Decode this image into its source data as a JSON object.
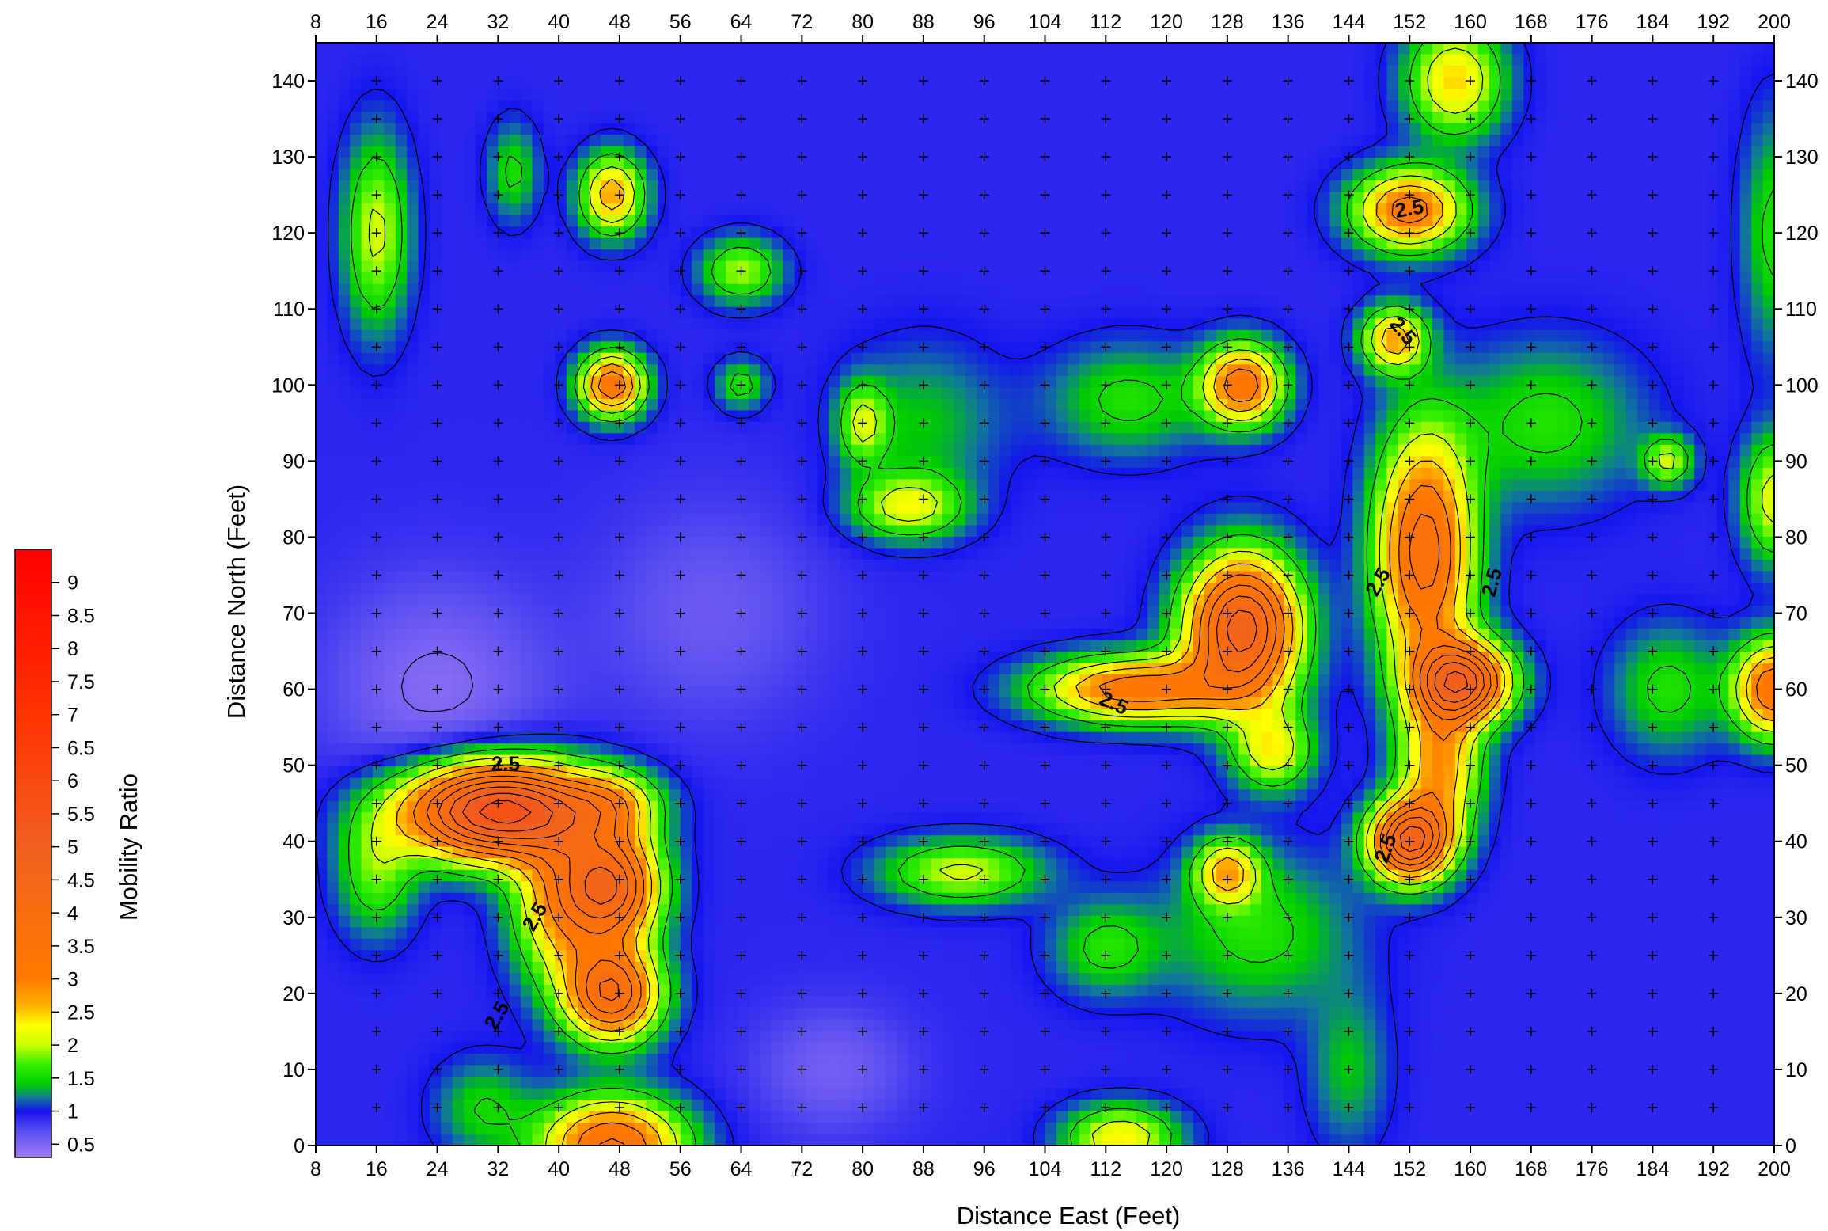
{
  "chart_data": {
    "type": "heatmap",
    "subtype": "filled-contour-map",
    "xlabel": "Distance East (Feet)",
    "ylabel": "Distance North (Feet)",
    "colorbar_label": "Mobility Ratio",
    "xlim": [
      8,
      200
    ],
    "ylim": [
      0,
      145
    ],
    "x_ticks": [
      "8",
      "16",
      "24",
      "32",
      "40",
      "48",
      "56",
      "64",
      "72",
      "80",
      "88",
      "96",
      "104",
      "112",
      "120",
      "128",
      "136",
      "144",
      "152",
      "160",
      "168",
      "176",
      "184",
      "192",
      "200"
    ],
    "y_ticks": [
      "0",
      "10",
      "20",
      "30",
      "40",
      "50",
      "60",
      "70",
      "80",
      "90",
      "100",
      "110",
      "120",
      "130",
      "140"
    ],
    "colorbar_ticks": [
      "0.5",
      "1",
      "1.5",
      "2",
      "2.5",
      "3",
      "3.5",
      "4",
      "4.5",
      "5",
      "5.5",
      "6",
      "6.5",
      "7",
      "7.5",
      "8",
      "8.5",
      "9"
    ],
    "colorbar_range": [
      0.3,
      9.5
    ],
    "contour_labels": [
      "2.5",
      "2.5",
      "2.5",
      "2.5",
      "2.5",
      "2.5",
      "2.5",
      "2.5",
      "2.5",
      "2.5"
    ],
    "color_stops": [
      {
        "value": 0.3,
        "color": "#a07cf6"
      },
      {
        "value": 0.7,
        "color": "#5a4ef0"
      },
      {
        "value": 1.0,
        "color": "#1414ee"
      },
      {
        "value": 1.2,
        "color": "#107898"
      },
      {
        "value": 1.4,
        "color": "#00cc00"
      },
      {
        "value": 1.7,
        "color": "#33ee00"
      },
      {
        "value": 2.0,
        "color": "#ccff00"
      },
      {
        "value": 2.3,
        "color": "#ffff00"
      },
      {
        "value": 2.6,
        "color": "#ffb000"
      },
      {
        "value": 3.0,
        "color": "#ff7a00"
      },
      {
        "value": 5.0,
        "color": "#f06020"
      },
      {
        "value": 7.0,
        "color": "#ff3300"
      },
      {
        "value": 9.5,
        "color": "#ff0000"
      }
    ],
    "background_level": 0.9,
    "features": [
      {
        "x": 32,
        "y": 44,
        "peak": 5.8,
        "rx": 12,
        "ry": 6
      },
      {
        "x": 47,
        "y": 34,
        "peak": 4.2,
        "rx": 6,
        "ry": 7
      },
      {
        "x": 47,
        "y": 20,
        "peak": 4.0,
        "rx": 6,
        "ry": 6
      },
      {
        "x": 40,
        "y": 32,
        "peak": 2.6,
        "rx": 6,
        "ry": 10
      },
      {
        "x": 47,
        "y": 45,
        "peak": 2.2,
        "rx": 6,
        "ry": 4
      },
      {
        "x": 47,
        "y": 0,
        "peak": 3.6,
        "rx": 9,
        "ry": 6
      },
      {
        "x": 30,
        "y": 5,
        "peak": 1.5,
        "rx": 6,
        "ry": 6
      },
      {
        "x": 47,
        "y": 100,
        "peak": 3.5,
        "rx": 4,
        "ry": 4
      },
      {
        "x": 47,
        "y": 125,
        "peak": 2.8,
        "rx": 4,
        "ry": 5
      },
      {
        "x": 16,
        "y": 120,
        "peak": 2.1,
        "rx": 4,
        "ry": 12
      },
      {
        "x": 34,
        "y": 128,
        "peak": 1.6,
        "rx": 3,
        "ry": 6
      },
      {
        "x": 64,
        "y": 115,
        "peak": 2.0,
        "rx": 5,
        "ry": 4
      },
      {
        "x": 64,
        "y": 100,
        "peak": 1.7,
        "rx": 3,
        "ry": 3
      },
      {
        "x": 80,
        "y": 95,
        "peak": 2.0,
        "rx": 3,
        "ry": 5
      },
      {
        "x": 86,
        "y": 84,
        "peak": 2.2,
        "rx": 7,
        "ry": 4
      },
      {
        "x": 88,
        "y": 95,
        "peak": 1.4,
        "rx": 10,
        "ry": 10
      },
      {
        "x": 130,
        "y": 68,
        "peak": 4.8,
        "rx": 7,
        "ry": 9
      },
      {
        "x": 116,
        "y": 60,
        "peak": 3.4,
        "rx": 12,
        "ry": 4
      },
      {
        "x": 134,
        "y": 52,
        "peak": 2.3,
        "rx": 5,
        "ry": 5
      },
      {
        "x": 115,
        "y": 98,
        "peak": 1.6,
        "rx": 10,
        "ry": 7
      },
      {
        "x": 130,
        "y": 100,
        "peak": 3.4,
        "rx": 5,
        "ry": 5
      },
      {
        "x": 152,
        "y": 123,
        "peak": 3.3,
        "rx": 7,
        "ry": 5
      },
      {
        "x": 150,
        "y": 106,
        "peak": 2.8,
        "rx": 4,
        "ry": 4
      },
      {
        "x": 158,
        "y": 140,
        "peak": 2.5,
        "rx": 6,
        "ry": 7
      },
      {
        "x": 154,
        "y": 78,
        "peak": 3.8,
        "rx": 6,
        "ry": 15
      },
      {
        "x": 159,
        "y": 61,
        "peak": 4.5,
        "rx": 6,
        "ry": 5
      },
      {
        "x": 152,
        "y": 40,
        "peak": 4.6,
        "rx": 5,
        "ry": 5
      },
      {
        "x": 156,
        "y": 50,
        "peak": 2.8,
        "rx": 5,
        "ry": 9
      },
      {
        "x": 128,
        "y": 36,
        "peak": 2.6,
        "rx": 4,
        "ry": 4
      },
      {
        "x": 132,
        "y": 28,
        "peak": 1.6,
        "rx": 12,
        "ry": 10
      },
      {
        "x": 112,
        "y": 26,
        "peak": 1.6,
        "rx": 7,
        "ry": 6
      },
      {
        "x": 93,
        "y": 36,
        "peak": 2.1,
        "rx": 10,
        "ry": 4
      },
      {
        "x": 114,
        "y": 1,
        "peak": 2.4,
        "rx": 7,
        "ry": 4
      },
      {
        "x": 144,
        "y": 10,
        "peak": 1.4,
        "rx": 5,
        "ry": 10
      },
      {
        "x": 170,
        "y": 95,
        "peak": 1.6,
        "rx": 12,
        "ry": 10
      },
      {
        "x": 186,
        "y": 90,
        "peak": 2.1,
        "rx": 3,
        "ry": 3
      },
      {
        "x": 186,
        "y": 60,
        "peak": 1.6,
        "rx": 7,
        "ry": 8
      },
      {
        "x": 200,
        "y": 60,
        "peak": 3.5,
        "rx": 5,
        "ry": 6
      },
      {
        "x": 200,
        "y": 85,
        "peak": 2.2,
        "rx": 4,
        "ry": 8
      },
      {
        "x": 200,
        "y": 120,
        "peak": 1.6,
        "rx": 4,
        "ry": 15
      },
      {
        "x": 16,
        "y": 36,
        "peak": 1.8,
        "rx": 5,
        "ry": 8
      },
      {
        "x": 24,
        "y": 60,
        "peak": 0.45,
        "rx": 14,
        "ry": 14
      },
      {
        "x": 76,
        "y": 10,
        "peak": 0.55,
        "rx": 10,
        "ry": 8
      },
      {
        "x": 60,
        "y": 70,
        "peak": 0.6,
        "rx": 14,
        "ry": 14
      }
    ],
    "sample_points": {
      "x_start": 16,
      "x_end": 192,
      "x_step": 8,
      "y_start": 5,
      "y_end": 140,
      "y_step": 5
    }
  }
}
